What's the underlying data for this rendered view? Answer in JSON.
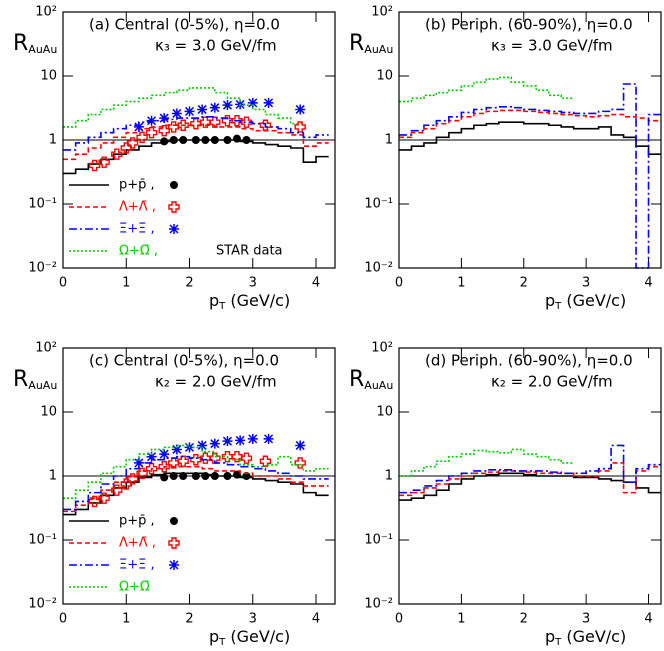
{
  "chart_data": [
    {
      "type": "line",
      "title": "(a) Central (0-5%), η=0.0",
      "subtitle": "κ₃ = 3.0 GeV/fm",
      "ylabel": [
        "R",
        "AuAu"
      ],
      "xlabel": [
        "p",
        "T",
        " (GeV/c)"
      ],
      "annotation": "STAR data",
      "yscale": "log",
      "ylim": [
        0.01,
        100
      ],
      "xlim": [
        0,
        4.3
      ],
      "reference_line": 1,
      "legend": true,
      "yticks": [
        {
          "value": 0.01,
          "label": "10⁻²"
        },
        {
          "value": 0.1,
          "label": "10⁻¹"
        },
        1,
        10,
        {
          "value": 100,
          "label": "10²"
        }
      ],
      "xticks": [
        0,
        1,
        2,
        3,
        4
      ],
      "x": [
        0.1,
        0.3,
        0.5,
        0.7,
        0.9,
        1.1,
        1.3,
        1.5,
        1.7,
        1.9,
        2.1,
        2.3,
        2.5,
        2.7,
        2.9,
        3.1,
        3.3,
        3.5,
        3.7,
        3.9,
        4.1
      ],
      "series": [
        {
          "name": "p+p̄ ,",
          "color": "#000000",
          "linestyle": "solid",
          "marker": "circle",
          "values": [
            0.3,
            0.35,
            0.42,
            0.5,
            0.6,
            0.7,
            0.8,
            0.9,
            0.95,
            1.0,
            1.0,
            1.0,
            1.0,
            1.0,
            0.95,
            0.9,
            0.85,
            0.8,
            0.75,
            0.45,
            0.55
          ],
          "data_x": [
            1.6,
            1.75,
            1.9,
            2.1,
            2.25,
            2.4,
            2.6,
            2.75,
            2.9
          ],
          "data_values": [
            0.95,
            1.0,
            1.0,
            1.0,
            1.0,
            1.0,
            1.0,
            1.05,
            1.0
          ]
        },
        {
          "name": "Λ+Λ̄ ,",
          "color": "#ff0000",
          "linestyle": "dashed",
          "marker": "cross",
          "values": [
            0.5,
            0.6,
            0.75,
            0.9,
            1.1,
            1.3,
            1.5,
            1.6,
            1.7,
            1.7,
            1.7,
            1.7,
            1.6,
            1.6,
            1.5,
            1.4,
            1.4,
            1.3,
            1.2,
            0.8,
            0.9
          ],
          "data_x": [
            0.5,
            0.65,
            0.85,
            1.0,
            1.1,
            1.25,
            1.4,
            1.6,
            1.75,
            1.9,
            2.1,
            2.25,
            2.4,
            2.6,
            2.75,
            2.9,
            3.2,
            3.75
          ],
          "data_values": [
            0.4,
            0.45,
            0.6,
            0.75,
            0.9,
            1.1,
            1.3,
            1.4,
            1.6,
            1.7,
            1.8,
            1.9,
            1.9,
            2.0,
            2.0,
            1.9,
            1.7,
            1.6
          ]
        },
        {
          "name": "Ξ+Ξ̄ ,",
          "color": "#0000ff",
          "linestyle": "dashdot",
          "marker": "star",
          "values": [
            0.7,
            0.9,
            1.1,
            1.3,
            1.5,
            1.7,
            1.9,
            2.0,
            2.1,
            2.2,
            2.2,
            2.3,
            2.2,
            2.0,
            1.9,
            1.8,
            1.6,
            1.5,
            1.3,
            1.1,
            1.2
          ],
          "data_x": [
            1.2,
            1.4,
            1.6,
            1.8,
            2.0,
            2.2,
            2.4,
            2.6,
            2.8,
            3.0,
            3.25,
            3.75
          ],
          "data_values": [
            1.6,
            2.0,
            2.2,
            2.6,
            2.8,
            3.0,
            3.2,
            3.5,
            3.6,
            3.8,
            3.8,
            3.0
          ]
        },
        {
          "name": "Ω+Ω̄ ,",
          "color": "#00cc00",
          "linestyle": "dotted",
          "values": [
            1.6,
            2.0,
            2.5,
            3.0,
            3.5,
            4.0,
            4.5,
            5.0,
            5.5,
            6.0,
            6.5,
            6.5,
            5.5,
            4.5,
            3.5,
            3.0,
            2.5,
            2.2,
            1.8,
            null,
            null
          ]
        }
      ]
    },
    {
      "type": "line",
      "title": "(b) Periph. (60-90%), η=0.0",
      "subtitle": "κ₃ = 3.0 GeV/fm",
      "ylabel": [
        "R",
        "AuAu"
      ],
      "xlabel": [
        "p",
        "T",
        " (GeV/c)"
      ],
      "yscale": "log",
      "ylim": [
        0.01,
        100
      ],
      "xlim": [
        0,
        4.2
      ],
      "reference_line": 1,
      "legend": false,
      "yticks": [
        {
          "value": 0.01,
          "label": "10⁻²"
        },
        {
          "value": 0.1,
          "label": "10⁻¹"
        },
        1,
        10,
        {
          "value": 100,
          "label": "10²"
        }
      ],
      "xticks": [
        0,
        1,
        2,
        3,
        4
      ],
      "x": [
        0.1,
        0.3,
        0.5,
        0.7,
        0.9,
        1.1,
        1.3,
        1.5,
        1.7,
        1.9,
        2.1,
        2.3,
        2.5,
        2.7,
        2.9,
        3.1,
        3.3,
        3.5,
        3.7,
        3.9,
        4.1
      ],
      "series": [
        {
          "color": "#000000",
          "linestyle": "solid",
          "values": [
            0.7,
            0.8,
            0.9,
            1.1,
            1.3,
            1.5,
            1.7,
            1.8,
            1.9,
            1.9,
            1.8,
            1.8,
            1.7,
            1.6,
            1.5,
            1.5,
            1.6,
            1.2,
            1.1,
            0.8,
            0.6
          ]
        },
        {
          "color": "#ff0000",
          "linestyle": "dashed",
          "values": [
            1.1,
            1.3,
            1.5,
            1.8,
            2.0,
            2.3,
            2.6,
            2.8,
            2.9,
            2.9,
            2.8,
            2.7,
            2.6,
            2.5,
            2.4,
            2.3,
            2.4,
            2.5,
            2.3,
            2.2,
            2.0
          ]
        },
        {
          "color": "#0000ff",
          "linestyle": "dashdot",
          "values": [
            1.2,
            1.4,
            1.7,
            2.0,
            2.3,
            2.7,
            3.0,
            3.2,
            3.3,
            3.2,
            3.0,
            2.9,
            2.8,
            2.7,
            2.6,
            2.6,
            2.8,
            3.0,
            7.5,
            0.01,
            2.5
          ]
        },
        {
          "color": "#00cc00",
          "linestyle": "dotted",
          "values": [
            4.0,
            4.5,
            5.0,
            5.5,
            6.0,
            7.0,
            8.0,
            9.0,
            9.5,
            8.0,
            7.0,
            6.0,
            5.0,
            4.5,
            null,
            null,
            null,
            null,
            null,
            null,
            null
          ]
        }
      ]
    },
    {
      "type": "line",
      "title": "(c) Central (0-5%), η=0.0",
      "subtitle": "κ₂ = 2.0 GeV/fm",
      "ylabel": [
        "R",
        "AuAu"
      ],
      "xlabel": [
        "p",
        "T",
        " (GeV/c)"
      ],
      "yscale": "log",
      "ylim": [
        0.01,
        100
      ],
      "xlim": [
        0,
        4.3
      ],
      "reference_line": 1,
      "legend": true,
      "yticks": [
        {
          "value": 0.01,
          "label": "10⁻²"
        },
        {
          "value": 0.1,
          "label": "10⁻¹"
        },
        1,
        10,
        {
          "value": 100,
          "label": "10²"
        }
      ],
      "xticks": [
        0,
        1,
        2,
        3,
        4
      ],
      "x": [
        0.1,
        0.3,
        0.5,
        0.7,
        0.9,
        1.1,
        1.3,
        1.5,
        1.7,
        1.9,
        2.1,
        2.3,
        2.5,
        2.7,
        2.9,
        3.1,
        3.3,
        3.5,
        3.7,
        3.9,
        4.1
      ],
      "series": [
        {
          "name": "p+p̄ ,",
          "color": "#000000",
          "linestyle": "solid",
          "marker": "circle",
          "values": [
            0.25,
            0.3,
            0.38,
            0.5,
            0.65,
            0.8,
            0.95,
            1.05,
            1.1,
            1.1,
            1.1,
            1.05,
            1.0,
            1.0,
            0.95,
            0.9,
            0.85,
            0.8,
            0.75,
            0.55,
            0.5
          ],
          "data_x": [
            1.6,
            1.75,
            1.9,
            2.1,
            2.25,
            2.4,
            2.6,
            2.75,
            2.9
          ],
          "data_values": [
            0.95,
            1.0,
            1.0,
            1.0,
            1.0,
            1.0,
            1.0,
            1.05,
            1.0
          ]
        },
        {
          "name": "Λ+Λ̄ ,",
          "color": "#ff0000",
          "linestyle": "dashed",
          "marker": "cross",
          "values": [
            0.28,
            0.35,
            0.45,
            0.6,
            0.8,
            1.0,
            1.2,
            1.3,
            1.4,
            1.4,
            1.4,
            1.3,
            1.2,
            1.2,
            1.1,
            1.0,
            1.0,
            0.9,
            0.8,
            0.7,
            0.7
          ],
          "data_x": [
            0.5,
            0.65,
            0.85,
            1.0,
            1.1,
            1.25,
            1.4,
            1.6,
            1.75,
            1.9,
            2.1,
            2.25,
            2.4,
            2.6,
            2.75,
            2.9,
            3.2,
            3.75
          ],
          "data_values": [
            0.4,
            0.45,
            0.6,
            0.75,
            0.9,
            1.1,
            1.3,
            1.4,
            1.6,
            1.7,
            1.8,
            1.9,
            1.9,
            2.0,
            2.0,
            1.9,
            1.7,
            1.6
          ]
        },
        {
          "name": "Ξ+Ξ̄ ,",
          "color": "#0000ff",
          "linestyle": "dashdot",
          "marker": "star",
          "values": [
            0.3,
            0.4,
            0.55,
            0.75,
            1.0,
            1.3,
            1.6,
            1.8,
            1.9,
            2.0,
            1.9,
            1.8,
            1.6,
            1.5,
            1.4,
            1.3,
            1.2,
            1.1,
            1.0,
            0.9,
            0.9
          ],
          "data_x": [
            1.2,
            1.4,
            1.6,
            1.8,
            2.0,
            2.2,
            2.4,
            2.6,
            2.8,
            3.0,
            3.25,
            3.75
          ],
          "data_values": [
            1.6,
            2.0,
            2.2,
            2.6,
            2.8,
            3.0,
            3.2,
            3.5,
            3.6,
            3.8,
            3.8,
            3.0
          ]
        },
        {
          "name": "Ω+Ω̄",
          "color": "#00cc00",
          "linestyle": "dotted",
          "values": [
            0.45,
            0.6,
            0.8,
            1.1,
            1.4,
            1.8,
            2.2,
            2.6,
            2.8,
            3.0,
            2.8,
            2.4,
            2.0,
            1.8,
            1.5,
            1.4,
            1.5,
            2.0,
            1.5,
            1.2,
            1.3
          ]
        }
      ]
    },
    {
      "type": "line",
      "title": "(d) Periph. (60-90%), η=0.0",
      "subtitle": "κ₂ = 2.0 GeV/fm",
      "ylabel": [
        "R",
        "AuAu"
      ],
      "xlabel": [
        "p",
        "T",
        " (GeV/c)"
      ],
      "yscale": "log",
      "ylim": [
        0.01,
        100
      ],
      "xlim": [
        0,
        4.2
      ],
      "reference_line": 1,
      "legend": false,
      "yticks": [
        {
          "value": 0.01,
          "label": "10⁻²"
        },
        {
          "value": 0.1,
          "label": "10⁻¹"
        },
        1,
        10,
        {
          "value": 100,
          "label": "10²"
        }
      ],
      "xticks": [
        0,
        1,
        2,
        3,
        4
      ],
      "x": [
        0.1,
        0.3,
        0.5,
        0.7,
        0.9,
        1.1,
        1.3,
        1.5,
        1.7,
        1.9,
        2.1,
        2.3,
        2.5,
        2.7,
        2.9,
        3.1,
        3.3,
        3.5,
        3.7,
        3.9,
        4.1
      ],
      "series": [
        {
          "color": "#000000",
          "linestyle": "solid",
          "values": [
            0.42,
            0.45,
            0.5,
            0.6,
            0.75,
            0.9,
            1.0,
            1.05,
            1.1,
            1.1,
            1.05,
            1.0,
            1.0,
            1.0,
            0.95,
            0.95,
            0.9,
            0.85,
            0.8,
            0.65,
            0.55
          ]
        },
        {
          "color": "#ff0000",
          "linestyle": "dashed",
          "values": [
            0.5,
            0.55,
            0.65,
            0.75,
            0.9,
            1.0,
            1.1,
            1.15,
            1.2,
            1.2,
            1.15,
            1.1,
            1.1,
            1.1,
            1.0,
            1.0,
            1.2,
            1.6,
            0.55,
            1.2,
            1.4
          ]
        },
        {
          "color": "#0000ff",
          "linestyle": "dashdot",
          "values": [
            0.55,
            0.6,
            0.7,
            0.85,
            1.0,
            1.1,
            1.2,
            1.25,
            1.25,
            1.2,
            1.2,
            1.2,
            1.15,
            1.1,
            1.1,
            1.2,
            1.3,
            3.0,
            0.8,
            1.3,
            1.5
          ]
        },
        {
          "color": "#00cc00",
          "linestyle": "dotted",
          "values": [
            1.0,
            1.2,
            1.4,
            1.7,
            2.0,
            2.2,
            2.5,
            2.4,
            2.3,
            2.6,
            2.2,
            2.0,
            1.8,
            1.6,
            null,
            null,
            null,
            null,
            null,
            null,
            null
          ]
        }
      ]
    }
  ]
}
